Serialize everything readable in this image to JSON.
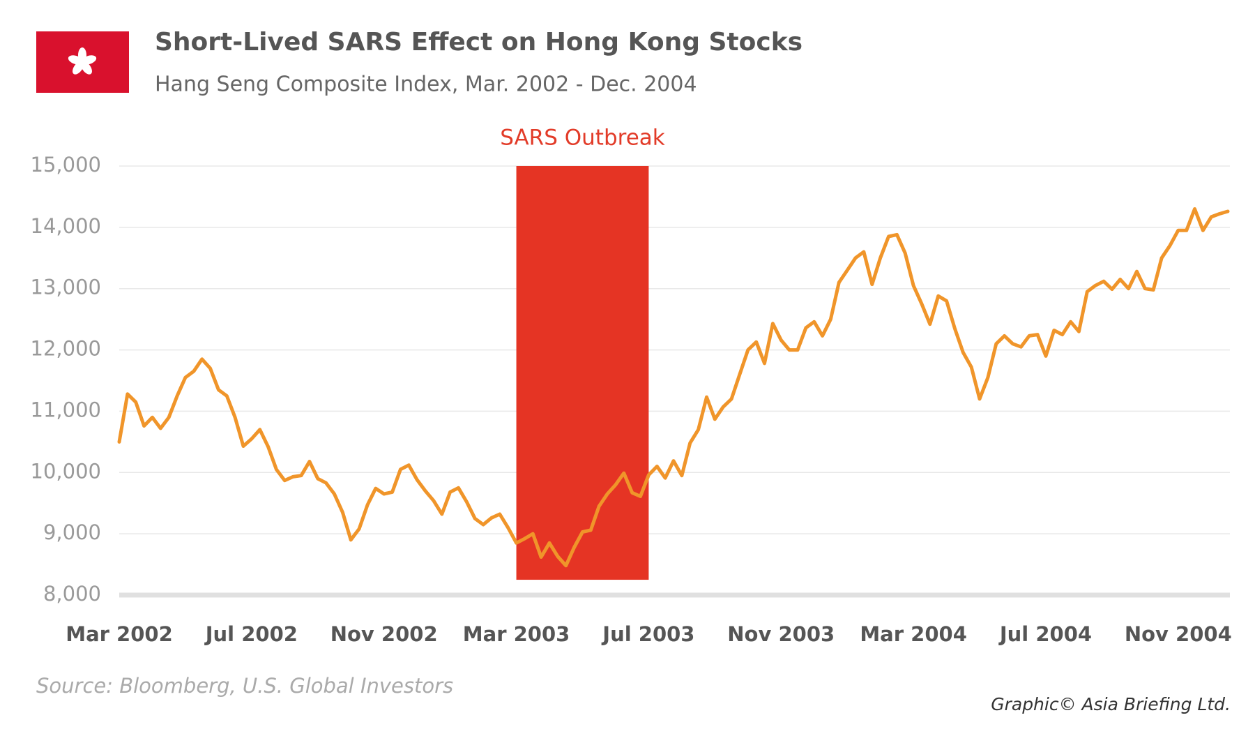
{
  "title": "Short-Lived SARS Effect on Hong Kong Stocks",
  "subtitle": "Hang Seng Composite Index, Mar. 2002 - Dec. 2004",
  "source": "Source: Bloomberg, U.S. Global Investors",
  "credit": "Graphic© Asia Briefing Ltd.",
  "chart_data": {
    "type": "line",
    "categories": [
      "Mar 2002",
      null,
      null,
      null,
      null,
      null,
      null,
      null,
      null,
      null,
      null,
      null,
      null,
      null,
      null,
      null,
      "Jul 2002",
      null,
      null,
      null,
      null,
      null,
      null,
      null,
      null,
      null,
      null,
      null,
      null,
      null,
      null,
      null,
      "Nov 2002",
      null,
      null,
      null,
      null,
      null,
      null,
      null,
      null,
      null,
      null,
      null,
      null,
      null,
      null,
      null,
      "Mar 2003",
      null,
      null,
      null,
      null,
      null,
      null,
      null,
      null,
      null,
      null,
      null,
      null,
      null,
      null,
      null,
      "Jul 2003",
      null,
      null,
      null,
      null,
      null,
      null,
      null,
      null,
      null,
      null,
      null,
      null,
      null,
      null,
      null,
      "Nov 2003",
      null,
      null,
      null,
      null,
      null,
      null,
      null,
      null,
      null,
      null,
      null,
      null,
      null,
      null,
      null,
      "Mar 2004",
      null,
      null,
      null,
      null,
      null,
      null,
      null,
      null,
      null,
      null,
      null,
      null,
      null,
      null,
      null,
      "Jul 2004",
      null,
      null,
      null,
      null,
      null,
      null,
      null,
      null,
      null,
      null,
      null,
      null,
      null,
      null,
      null,
      "Nov 2004",
      null,
      null,
      null,
      null,
      null,
      null
    ],
    "series": [
      {
        "name": "Hang Seng Composite Index",
        "color": "#f0952a",
        "values": [
          10500,
          11280,
          11150,
          10760,
          10900,
          10720,
          10900,
          11250,
          11550,
          11650,
          11850,
          11700,
          11350,
          11250,
          10900,
          10430,
          10550,
          10700,
          10420,
          10050,
          9870,
          9930,
          9950,
          10180,
          9900,
          9830,
          9650,
          9350,
          8900,
          9080,
          9470,
          9740,
          9650,
          9680,
          10050,
          10120,
          9880,
          9700,
          9540,
          9320,
          9680,
          9750,
          9520,
          9250,
          9150,
          9260,
          9320,
          9100,
          8850,
          8920,
          9000,
          8620,
          8850,
          8630,
          8480,
          8780,
          9030,
          9060,
          9450,
          9650,
          9800,
          9990,
          9670,
          9610,
          9960,
          10100,
          9910,
          10190,
          9950,
          10480,
          10700,
          11230,
          10870,
          11070,
          11200,
          11600,
          12000,
          12130,
          11780,
          12430,
          12160,
          12000,
          12000,
          12360,
          12460,
          12230,
          12500,
          13100,
          13300,
          13500,
          13600,
          13070,
          13500,
          13850,
          13880,
          13580,
          13050,
          12750,
          12420,
          12880,
          12800,
          12350,
          11960,
          11720,
          11200,
          11550,
          12100,
          12230,
          12100,
          12050,
          12230,
          12250,
          11900,
          12320,
          12250,
          12460,
          12300,
          12950,
          13050,
          13120,
          12990,
          13150,
          13000,
          13280,
          13000,
          12980,
          13500,
          13700,
          13950,
          13950,
          14300,
          13950,
          14170,
          14220,
          14260
        ]
      }
    ],
    "span": {
      "label": "SARS Outbreak",
      "from": "Mar 2003",
      "to": "Jul 2003",
      "y": [
        8250,
        15000
      ],
      "color": "#e53424"
    },
    "ylim": [
      8000,
      15000
    ],
    "yticks": [
      {
        "value": 8000,
        "label": "8,000"
      },
      {
        "value": 9000,
        "label": "9,000"
      },
      {
        "value": 10000,
        "label": "10,000"
      },
      {
        "value": 11000,
        "label": "11,000"
      },
      {
        "value": 12000,
        "label": "12,000"
      },
      {
        "value": 13000,
        "label": "13,000"
      },
      {
        "value": 14000,
        "label": "14,000"
      },
      {
        "value": 15000,
        "label": "15,000"
      }
    ],
    "grid": true
  }
}
